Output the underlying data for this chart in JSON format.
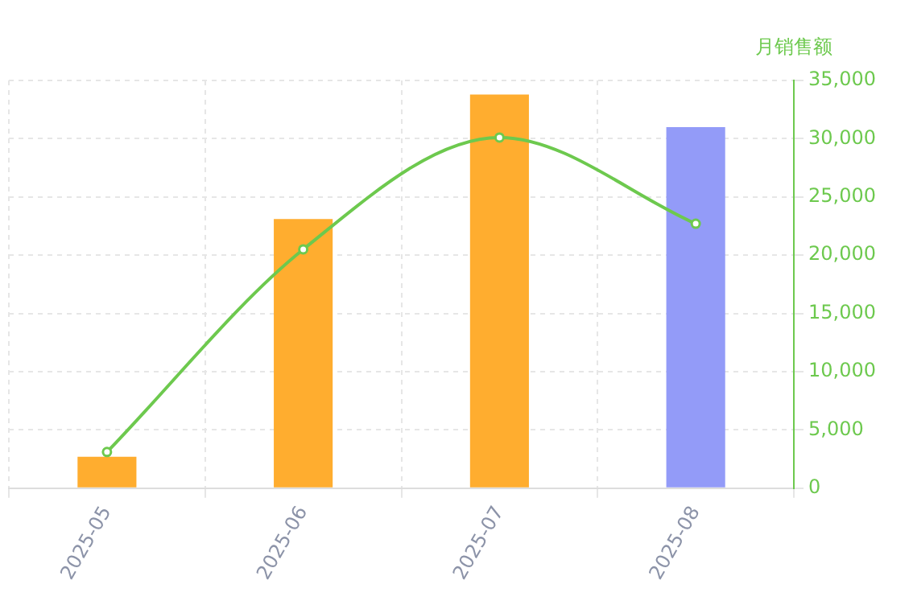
{
  "chart_data": {
    "type": "bar",
    "y2label": "月销售额",
    "categories": [
      "2025-05",
      "2025-06",
      "2025-07",
      "2025-08"
    ],
    "series": [
      {
        "axis": "y2",
        "colors": [
          "#ffad2f",
          "#ffad2f",
          "#ffad2f",
          "#939bf8"
        ],
        "values": [
          2700,
          23100,
          33800,
          31000
        ]
      },
      {
        "type": "line",
        "axis": "y2",
        "color": "#6dc94e",
        "values": [
          3100,
          20500,
          30100,
          22700
        ],
        "marker": "circle"
      }
    ],
    "y2lim": [
      0,
      35000
    ],
    "y2ticks": [
      {
        "value": 0,
        "label": "0"
      },
      {
        "value": 5000,
        "label": "5,000"
      },
      {
        "value": 10000,
        "label": "10,000"
      },
      {
        "value": 15000,
        "label": "15,000"
      },
      {
        "value": 20000,
        "label": "20,000"
      },
      {
        "value": 25000,
        "label": "25,000"
      },
      {
        "value": 30000,
        "label": "30,000"
      },
      {
        "value": 35000,
        "label": "35,000"
      }
    ],
    "grid": true,
    "legend": false
  }
}
